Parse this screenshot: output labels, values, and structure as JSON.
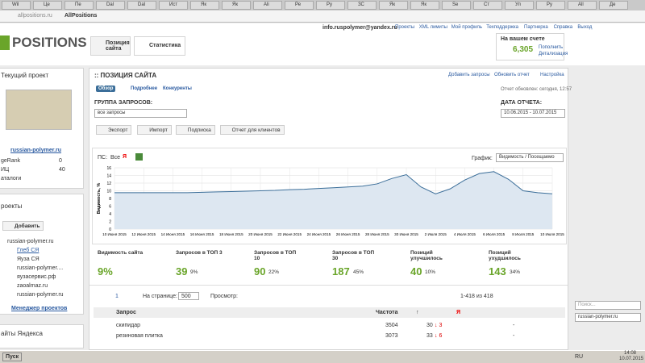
{
  "browser": {
    "tabs": [
      "Wil",
      "Це",
      "Пе",
      "Dal",
      "Dal",
      "Ист",
      "Як",
      "Як",
      "Ali",
      "Ре",
      "Ру",
      "ЗС",
      "Як",
      "Як",
      "Se",
      "Ст",
      "Ул",
      "Ру",
      "All",
      "Де"
    ],
    "url": "allpositions.ru",
    "page_title": "AllPositions"
  },
  "header": {
    "logo": "POSITIONS",
    "nav": [
      "Позиция сайта",
      "Статистика"
    ],
    "email": "info.ruspolymer@yandex.ru",
    "links": [
      "Проекты",
      "XML лимиты",
      "Мой профиль",
      "Техподдержка",
      "Партнерка",
      "Справка",
      "Выход"
    ],
    "balance_label": "На вашем счете",
    "balance": "6,305",
    "topup": "Пополнить",
    "details": "Детализация"
  },
  "sidebar": {
    "current_title": "Текущий проект",
    "site": "russian-polymer.ru",
    "metrics": [
      {
        "label": "geRank",
        "value": "0"
      },
      {
        "label": "ИЦ",
        "value": "40"
      },
      {
        "label": "аталоги",
        "value": ""
      }
    ],
    "projects_title": "роекты",
    "add": "Добавить",
    "tree": [
      "russian-polymer.ru",
      "Глеб СЯ",
      "Яуза СЯ",
      "russian-polymer....",
      "яузасервис.рф",
      "zaoalmaz.ru",
      "russian-polymer.ru"
    ],
    "manager": "Менеджер проектов",
    "yandex_sites": "айты Яндекса"
  },
  "main": {
    "title": ":: ПОЗИЦИЯ САЙТА",
    "actions": [
      "Добавить запросы",
      "Обновить отчет",
      "Настройка"
    ],
    "tabs": [
      "Обзор",
      "Подробнее",
      "Конкуренты"
    ],
    "updated": "Отчет обновлен: сегодня, 12:57",
    "group_label": "ГРУППА ЗАПРОСОВ:",
    "group_value": "все запросы",
    "date_label": "ДАТА ОТЧЕТА:",
    "date_value": "10.06.2015 - 10.07.2015",
    "buttons": [
      "Экспорт",
      "Импорт",
      "Подписка",
      "Отчет для клиентов"
    ],
    "ps_label": "ПС:",
    "ps_all": "Все",
    "ps_yandex": "Я",
    "graph_label": "График:",
    "graph_value": "Видимость / Посещаемо"
  },
  "chart_data": {
    "type": "line",
    "y_label": "Видимость, %",
    "color": "#3b6e99",
    "fill": "#dde7f1",
    "grid": true,
    "categories": [
      "10 Июня 2015",
      null,
      "12 Июня 2015",
      null,
      "14 Июня 2015",
      null,
      "16 Июня 2015",
      null,
      "18 Июня 2015",
      null,
      "20 Июня 2015",
      null,
      "22 Июня 2015",
      null,
      "24 Июня 2015",
      null,
      "26 Июня 2015",
      null,
      "28 Июня 2015",
      null,
      "30 Июня 2015",
      null,
      "2 Июля 2015",
      null,
      "4 Июля 2015",
      null,
      "6 Июля 2015",
      null,
      "8 Июля 2015",
      null,
      "10 Июля 2015"
    ],
    "values": [
      9.5,
      9.5,
      9.5,
      9.5,
      9.5,
      9.5,
      9.6,
      9.7,
      9.8,
      9.9,
      10.0,
      10.1,
      10.3,
      10.4,
      10.6,
      10.8,
      11.0,
      11.2,
      11.8,
      13.2,
      14.2,
      11.0,
      9.2,
      10.5,
      12.8,
      14.5,
      15.0,
      13.0,
      10.0,
      9.5,
      9.2
    ],
    "ylim": [
      0,
      16
    ],
    "yticks": [
      0,
      2,
      4,
      6,
      8,
      10,
      12,
      14,
      16
    ]
  },
  "stats": [
    {
      "label": "Видимость сайта",
      "value": "9%",
      "pct": ""
    },
    {
      "label": "Запросов в ТОП 3",
      "value": "39",
      "pct": "9%"
    },
    {
      "label": "Запросов в ТОП 10",
      "value": "90",
      "pct": "22%"
    },
    {
      "label": "Запросов в ТОП 30",
      "value": "187",
      "pct": "45%"
    },
    {
      "label": "Позиций улучшилось",
      "value": "40",
      "pct": "10%"
    },
    {
      "label": "Позиций ухудшилось",
      "value": "143",
      "pct": "34%"
    }
  ],
  "pager": {
    "page": "1",
    "per_page_label": "На странице:",
    "per_page": "500",
    "view_label": "Просмотр:",
    "range": "1-418 из 418"
  },
  "table": {
    "header": [
      "Запрос",
      "Частота",
      "↑",
      "Я"
    ],
    "rows": [
      [
        "скипидар",
        "3504",
        "30",
        "↓ 3",
        "-"
      ],
      [
        "резиновая плитка",
        "3073",
        "33",
        "↓ 6",
        "-"
      ]
    ]
  },
  "right": {
    "search": "Поиск...",
    "site": "russian-polymer.ru"
  },
  "taskbar": {
    "start": "Пуск",
    "lang": "RU",
    "time": "14:08",
    "date": "10.07.2015"
  }
}
